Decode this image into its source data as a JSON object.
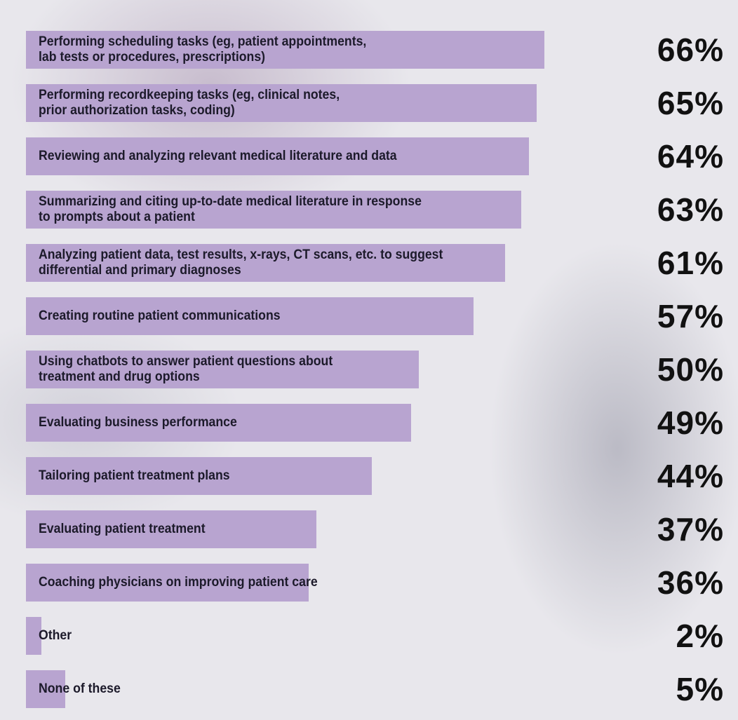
{
  "chart_data": {
    "type": "bar",
    "orientation": "horizontal",
    "color": "#b8a4d0",
    "categories": [
      "Performing scheduling tasks (eg, patient appointments,\nlab tests or procedures, prescriptions)",
      "Performing recordkeeping tasks (eg, clinical notes,\nprior authorization tasks, coding)",
      "Reviewing and analyzing relevant medical literature and data",
      "Summarizing and citing up-to-date medical literature in response\nto prompts about a patient",
      "Analyzing patient data, test results, x-rays, CT scans, etc. to suggest\ndifferential and primary diagnoses",
      "Creating routine patient communications",
      "Using chatbots to answer patient questions about\ntreatment and drug options",
      "Evaluating business performance",
      "Tailoring patient treatment plans",
      "Evaluating patient treatment",
      "Coaching physicians on improving patient care",
      "Other",
      "None of these"
    ],
    "values": [
      66,
      65,
      64,
      63,
      61,
      57,
      50,
      49,
      44,
      37,
      36,
      2,
      5
    ],
    "value_labels": [
      "66%",
      "65%",
      "64%",
      "63%",
      "61%",
      "57%",
      "50%",
      "49%",
      "44%",
      "37%",
      "36%",
      "2%",
      "5%"
    ]
  }
}
